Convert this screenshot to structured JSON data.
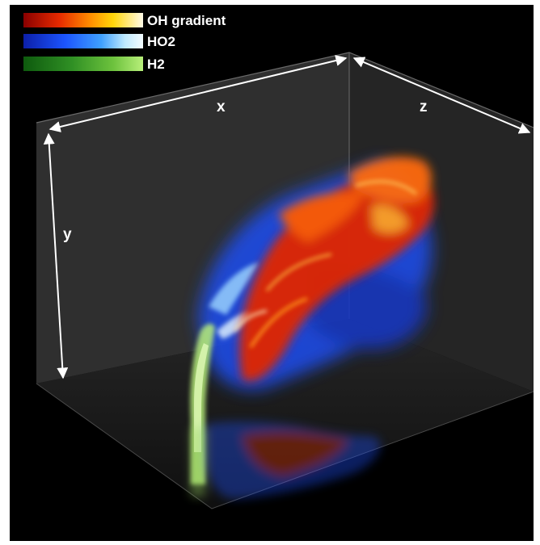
{
  "legend": [
    {
      "label": "OH gradient",
      "colors": [
        "#8a0000",
        "#e62a00",
        "#ff8a00",
        "#ffd60a",
        "#fffbe8"
      ]
    },
    {
      "label": "HO2",
      "colors": [
        "#0c1fa8",
        "#1c55ff",
        "#3fa0ff",
        "#bfeaff",
        "#f4fcff"
      ]
    },
    {
      "label": "H2",
      "colors": [
        "#0e5a0e",
        "#2f8f24",
        "#6dc23d",
        "#b8ef7a"
      ]
    }
  ],
  "axes": {
    "x": "x",
    "y": "y",
    "z": "z"
  },
  "colors": {
    "background": "#000000",
    "box_wall": "#5a5a5a",
    "axis_arrow": "#ffffff"
  }
}
